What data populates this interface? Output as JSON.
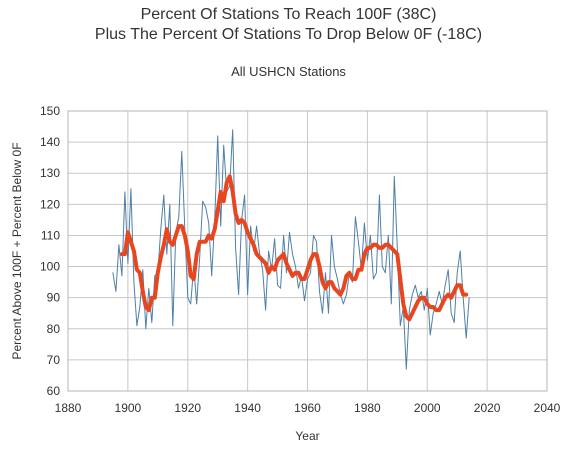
{
  "chart_data": {
    "type": "line",
    "title": "Percent Of Stations To Reach 100F (38C)",
    "subtitle_line2": "Plus The Percent Of Stations To Drop Below 0F (-18C)",
    "subtitle": "All USHCN Stations",
    "xlabel": "Year",
    "ylabel": "Percent Above 100F + Percent Below 0F",
    "xlim": [
      1880,
      2040
    ],
    "ylim": [
      60,
      150
    ],
    "xticks": [
      1880,
      1900,
      1920,
      1940,
      1960,
      1980,
      2000,
      2020,
      2040
    ],
    "yticks": [
      60,
      70,
      80,
      90,
      100,
      110,
      120,
      130,
      140,
      150
    ],
    "grid": true,
    "colors": {
      "annual": "#4f7fa8",
      "smoothed": "#e8461e",
      "grid": "#c8c8c8"
    },
    "series": [
      {
        "style": "thin",
        "x": [
          1895,
          1896,
          1897,
          1898,
          1899,
          1900,
          1901,
          1902,
          1903,
          1904,
          1905,
          1906,
          1907,
          1908,
          1909,
          1910,
          1911,
          1912,
          1913,
          1914,
          1915,
          1916,
          1917,
          1918,
          1919,
          1920,
          1921,
          1922,
          1923,
          1924,
          1925,
          1926,
          1927,
          1928,
          1929,
          1930,
          1931,
          1932,
          1933,
          1934,
          1935,
          1936,
          1937,
          1938,
          1939,
          1940,
          1941,
          1942,
          1943,
          1944,
          1945,
          1946,
          1947,
          1948,
          1949,
          1950,
          1951,
          1952,
          1953,
          1954,
          1955,
          1956,
          1957,
          1958,
          1959,
          1960,
          1961,
          1962,
          1963,
          1964,
          1965,
          1966,
          1967,
          1968,
          1969,
          1970,
          1971,
          1972,
          1973,
          1974,
          1975,
          1976,
          1977,
          1978,
          1979,
          1980,
          1981,
          1982,
          1983,
          1984,
          1985,
          1986,
          1987,
          1988,
          1989,
          1990,
          1991,
          1992,
          1993,
          1994,
          1995,
          1996,
          1997,
          1998,
          1999,
          2000,
          2001,
          2002,
          2003,
          2004,
          2005,
          2006,
          2007,
          2008,
          2009,
          2010,
          2011,
          2012,
          2013,
          2014
        ],
        "y": [
          98,
          92,
          107,
          97,
          124,
          101,
          125,
          95,
          81,
          87,
          99,
          80,
          93,
          82,
          97,
          98,
          112,
          123,
          104,
          120,
          81,
          111,
          116,
          137,
          112,
          90,
          88,
          100,
          88,
          103,
          121,
          119,
          114,
          97,
          115,
          142,
          113,
          139,
          124,
          126,
          144,
          106,
          91,
          115,
          123,
          91,
          113,
          105,
          113,
          104,
          99,
          86,
          105,
          99,
          109,
          94,
          93,
          110,
          98,
          111,
          104,
          100,
          93,
          97,
          89,
          96,
          98,
          110,
          108,
          92,
          85,
          98,
          85,
          110,
          100,
          96,
          91,
          88,
          91,
          98,
          95,
          116,
          108,
          99,
          114,
          102,
          110,
          96,
          98,
          123,
          100,
          98,
          110,
          88,
          129,
          106,
          81,
          87,
          67,
          86,
          91,
          94,
          90,
          92,
          86,
          93,
          78,
          85,
          88,
          92,
          88,
          94,
          99,
          85,
          82,
          98,
          105,
          90,
          77,
          90
        ]
      },
      {
        "style": "thick",
        "x": [
          1898,
          1899,
          1900,
          1901,
          1902,
          1903,
          1904,
          1905,
          1906,
          1907,
          1908,
          1909,
          1910,
          1911,
          1912,
          1913,
          1914,
          1915,
          1916,
          1917,
          1918,
          1919,
          1920,
          1921,
          1922,
          1923,
          1924,
          1925,
          1926,
          1927,
          1928,
          1929,
          1930,
          1931,
          1932,
          1933,
          1934,
          1935,
          1936,
          1937,
          1938,
          1939,
          1940,
          1941,
          1942,
          1943,
          1944,
          1945,
          1946,
          1947,
          1948,
          1949,
          1950,
          1951,
          1952,
          1953,
          1954,
          1955,
          1956,
          1957,
          1958,
          1959,
          1960,
          1961,
          1962,
          1963,
          1964,
          1965,
          1966,
          1967,
          1968,
          1969,
          1970,
          1971,
          1972,
          1973,
          1974,
          1975,
          1976,
          1977,
          1978,
          1979,
          1980,
          1981,
          1982,
          1983,
          1984,
          1985,
          1986,
          1987,
          1988,
          1989,
          1990,
          1991,
          1992,
          1993,
          1994,
          1995,
          1996,
          1997,
          1998,
          1999,
          2000,
          2001,
          2002,
          2003,
          2004,
          2005,
          2006,
          2007,
          2008,
          2009,
          2010,
          2011,
          2012,
          2013
        ],
        "y": [
          104,
          104,
          111,
          108,
          105,
          99,
          98,
          92,
          87,
          86,
          90,
          90,
          98,
          103,
          107,
          112,
          108,
          107,
          110,
          113,
          113,
          110,
          105,
          97,
          96,
          104,
          108,
          108,
          108,
          110,
          109,
          112,
          118,
          124,
          121,
          127,
          129,
          124,
          117,
          114,
          115,
          114,
          111,
          109,
          107,
          104,
          103,
          102,
          101,
          98,
          100,
          99,
          102,
          103,
          104,
          101,
          99,
          97,
          98,
          98,
          96,
          96,
          99,
          102,
          104,
          104,
          100,
          95,
          93,
          95,
          95,
          93,
          92,
          91,
          93,
          97,
          98,
          96,
          96,
          99,
          99,
          104,
          106,
          106,
          107,
          107,
          106,
          106,
          107,
          107,
          106,
          105,
          104,
          96,
          88,
          84,
          83,
          85,
          87,
          89,
          90,
          90,
          88,
          87,
          87,
          86,
          86,
          88,
          90,
          91,
          90,
          92,
          94,
          94,
          91,
          91
        ]
      }
    ]
  }
}
